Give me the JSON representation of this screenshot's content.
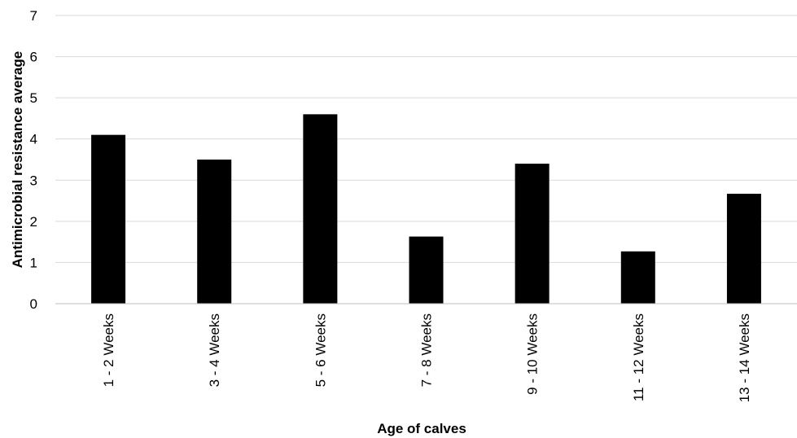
{
  "chart_data": {
    "type": "bar",
    "categories": [
      "1 - 2 Weeks",
      "3 - 4 Weeks",
      "5 - 6 Weeks",
      "7 - 8 Weeks",
      "9 - 10 Weeks",
      "11 - 12 Weeks",
      "13 - 14 Weeks"
    ],
    "values": [
      4.1,
      3.5,
      4.6,
      1.63,
      3.4,
      1.27,
      2.67
    ],
    "title": "",
    "xlabel": "Age of calves",
    "ylabel": "Antimicrobial resistance average",
    "ylim": [
      0,
      7
    ],
    "yticks": [
      "0",
      "1",
      "2",
      "3",
      "4",
      "5",
      "6",
      "7"
    ],
    "grid": true,
    "legend": "none",
    "colors": {
      "bar": "#000000",
      "grid": "#d9d9d9",
      "axis": "#bfbfbf"
    }
  }
}
